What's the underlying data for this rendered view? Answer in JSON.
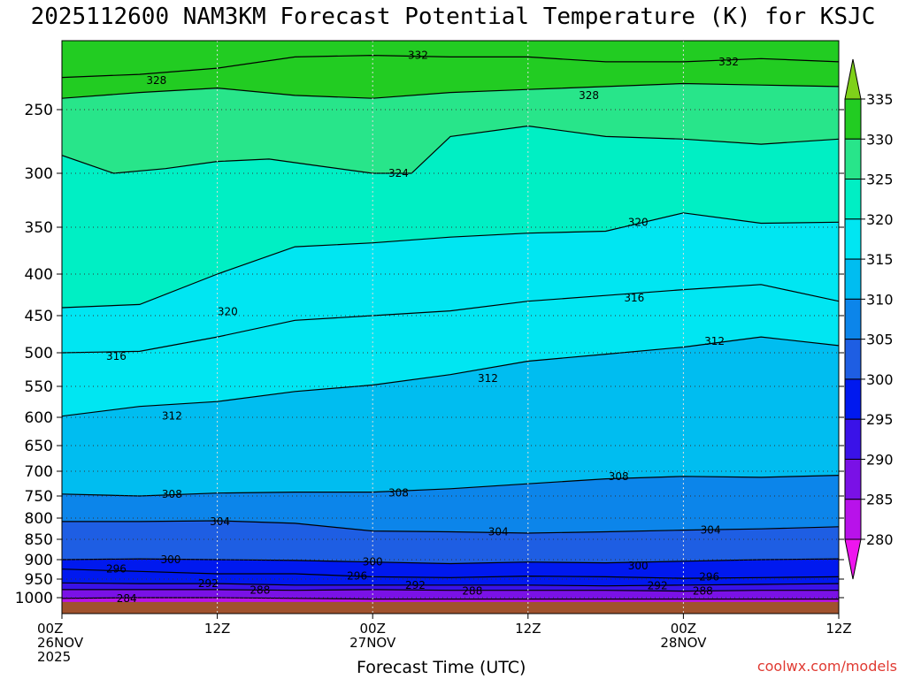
{
  "title": "2025112600 NAM3KM Forecast Potential Temperature (K) for KSJC",
  "credit": "coolwx.com/models",
  "chart_data": {
    "type": "contour",
    "variable": "Potential Temperature (K)",
    "xlabel": "Forecast Time (UTC)",
    "ylabel": "",
    "x_ticks": [
      {
        "hour": 0,
        "lines": [
          "00Z",
          "26NOV",
          "2025"
        ]
      },
      {
        "hour": 12,
        "lines": [
          "12Z"
        ]
      },
      {
        "hour": 24,
        "lines": [
          "00Z",
          "27NOV"
        ]
      },
      {
        "hour": 36,
        "lines": [
          "12Z"
        ]
      },
      {
        "hour": 48,
        "lines": [
          "00Z",
          "28NOV"
        ]
      },
      {
        "hour": 60,
        "lines": [
          "12Z"
        ]
      }
    ],
    "xlim": [
      0,
      60
    ],
    "y_ticks": [
      250,
      300,
      350,
      400,
      450,
      500,
      550,
      600,
      650,
      700,
      750,
      800,
      850,
      900,
      950,
      1000
    ],
    "ylim_hpa": [
      200,
      1030
    ],
    "colorbar": {
      "ticks": [
        335,
        330,
        325,
        320,
        315,
        310,
        305,
        300,
        295,
        290,
        285,
        280
      ],
      "bands": [
        {
          "lo": 335,
          "hi": 340,
          "color": "#7fd11a"
        },
        {
          "lo": 330,
          "hi": 335,
          "color": "#22cc22"
        },
        {
          "lo": 325,
          "hi": 330,
          "color": "#28e58a"
        },
        {
          "lo": 320,
          "hi": 325,
          "color": "#00efc4"
        },
        {
          "lo": 315,
          "hi": 320,
          "color": "#00e6f2"
        },
        {
          "lo": 310,
          "hi": 315,
          "color": "#00bdf0"
        },
        {
          "lo": 305,
          "hi": 310,
          "color": "#0c85ea"
        },
        {
          "lo": 300,
          "hi": 305,
          "color": "#1e5ee3"
        },
        {
          "lo": 295,
          "hi": 300,
          "color": "#0019ef"
        },
        {
          "lo": 290,
          "hi": 295,
          "color": "#3a12e8"
        },
        {
          "lo": 285,
          "hi": 290,
          "color": "#7a11e6"
        },
        {
          "lo": 280,
          "hi": 285,
          "color": "#b812ea"
        },
        {
          "lo": 275,
          "hi": 280,
          "color": "#ee16ee"
        }
      ]
    },
    "contour_levels_drawn": [
      284,
      288,
      292,
      296,
      300,
      304,
      308,
      312,
      316,
      320,
      324,
      328,
      332
    ],
    "contours": [
      {
        "level": 332,
        "labeled": true,
        "points": [
          [
            0,
            228
          ],
          [
            6,
            226
          ],
          [
            12,
            222
          ],
          [
            18,
            215
          ],
          [
            24,
            214
          ],
          [
            30,
            215
          ],
          [
            36,
            215
          ],
          [
            42,
            218
          ],
          [
            48,
            218
          ],
          [
            54,
            216
          ],
          [
            60,
            218
          ]
        ]
      },
      {
        "level": 328,
        "labeled": true,
        "points": [
          [
            0,
            242
          ],
          [
            6,
            238
          ],
          [
            12,
            235
          ],
          [
            18,
            240
          ],
          [
            24,
            242
          ],
          [
            30,
            238
          ],
          [
            36,
            236
          ],
          [
            42,
            234
          ],
          [
            48,
            232
          ],
          [
            54,
            233
          ],
          [
            60,
            234
          ]
        ]
      },
      {
        "level": 324,
        "labeled": true,
        "points": [
          [
            0,
            285
          ],
          [
            4,
            300
          ],
          [
            8,
            296
          ],
          [
            12,
            290
          ],
          [
            16,
            288
          ],
          [
            20,
            294
          ],
          [
            24,
            300
          ],
          [
            27,
            300
          ],
          [
            30,
            270
          ],
          [
            36,
            262
          ],
          [
            42,
            270
          ],
          [
            48,
            272
          ],
          [
            54,
            276
          ],
          [
            60,
            272
          ]
        ]
      },
      {
        "level": 320,
        "labeled": true,
        "points": [
          [
            0,
            440
          ],
          [
            6,
            436
          ],
          [
            12,
            400
          ],
          [
            18,
            370
          ],
          [
            24,
            366
          ],
          [
            30,
            360
          ],
          [
            36,
            356
          ],
          [
            42,
            354
          ],
          [
            48,
            336
          ],
          [
            54,
            346
          ],
          [
            60,
            345
          ]
        ]
      },
      {
        "level": 316,
        "labeled": true,
        "points": [
          [
            0,
            500
          ],
          [
            6,
            498
          ],
          [
            12,
            478
          ],
          [
            18,
            456
          ],
          [
            24,
            450
          ],
          [
            30,
            444
          ],
          [
            36,
            432
          ],
          [
            42,
            425
          ],
          [
            48,
            418
          ],
          [
            54,
            412
          ],
          [
            60,
            432
          ]
        ]
      },
      {
        "level": 312,
        "labeled": true,
        "points": [
          [
            0,
            598
          ],
          [
            6,
            582
          ],
          [
            12,
            574
          ],
          [
            18,
            558
          ],
          [
            24,
            548
          ],
          [
            30,
            532
          ],
          [
            36,
            512
          ],
          [
            42,
            502
          ],
          [
            48,
            492
          ],
          [
            54,
            478
          ],
          [
            60,
            490
          ]
        ]
      },
      {
        "level": 308,
        "labeled": true,
        "points": [
          [
            0,
            746
          ],
          [
            6,
            750
          ],
          [
            12,
            744
          ],
          [
            18,
            742
          ],
          [
            24,
            742
          ],
          [
            30,
            735
          ],
          [
            36,
            725
          ],
          [
            42,
            715
          ],
          [
            48,
            710
          ],
          [
            54,
            712
          ],
          [
            60,
            708
          ]
        ]
      },
      {
        "level": 304,
        "labeled": true,
        "points": [
          [
            0,
            808
          ],
          [
            6,
            808
          ],
          [
            12,
            806
          ],
          [
            18,
            812
          ],
          [
            24,
            830
          ],
          [
            30,
            832
          ],
          [
            36,
            835
          ],
          [
            42,
            832
          ],
          [
            48,
            828
          ],
          [
            54,
            825
          ],
          [
            60,
            820
          ]
        ]
      },
      {
        "level": 300,
        "labeled": true,
        "points": [
          [
            0,
            900
          ],
          [
            6,
            898
          ],
          [
            12,
            900
          ],
          [
            18,
            902
          ],
          [
            24,
            906
          ],
          [
            30,
            910
          ],
          [
            36,
            906
          ],
          [
            42,
            908
          ],
          [
            48,
            904
          ],
          [
            54,
            900
          ],
          [
            60,
            898
          ]
        ]
      },
      {
        "level": 296,
        "labeled": true,
        "points": [
          [
            0,
            924
          ],
          [
            6,
            930
          ],
          [
            12,
            936
          ],
          [
            18,
            936
          ],
          [
            24,
            944
          ],
          [
            30,
            946
          ],
          [
            36,
            942
          ],
          [
            42,
            944
          ],
          [
            48,
            948
          ],
          [
            54,
            946
          ],
          [
            60,
            944
          ]
        ]
      },
      {
        "level": 292,
        "labeled": true,
        "points": [
          [
            0,
            960
          ],
          [
            6,
            962
          ],
          [
            12,
            962
          ],
          [
            18,
            966
          ],
          [
            24,
            966
          ],
          [
            30,
            966
          ],
          [
            36,
            966
          ],
          [
            42,
            968
          ],
          [
            48,
            966
          ],
          [
            54,
            964
          ],
          [
            60,
            962
          ]
        ]
      },
      {
        "level": 288,
        "labeled": true,
        "points": [
          [
            0,
            978
          ],
          [
            6,
            978
          ],
          [
            12,
            978
          ],
          [
            18,
            980
          ],
          [
            24,
            978
          ],
          [
            30,
            980
          ],
          [
            36,
            980
          ],
          [
            42,
            980
          ],
          [
            48,
            982
          ],
          [
            54,
            980
          ],
          [
            60,
            980
          ]
        ]
      },
      {
        "level": 284,
        "labeled": true,
        "points": [
          [
            0,
            1002
          ],
          [
            6,
            1000
          ],
          [
            12,
            1000
          ],
          [
            18,
            1002
          ],
          [
            24,
            1004
          ],
          [
            30,
            1004
          ],
          [
            36,
            1004
          ],
          [
            42,
            1004
          ],
          [
            48,
            1004
          ],
          [
            54,
            1004
          ],
          [
            60,
            1004
          ]
        ]
      }
    ],
    "contour_labels": [
      {
        "text": "332",
        "hour": 27.5,
        "hpa": 214
      },
      {
        "text": "332",
        "hour": 51.5,
        "hpa": 218
      },
      {
        "text": "328",
        "hour": 7.3,
        "hpa": 230
      },
      {
        "text": "328",
        "hour": 40.7,
        "hpa": 240
      },
      {
        "text": "324",
        "hour": 26.0,
        "hpa": 300
      },
      {
        "text": "320",
        "hour": 44.5,
        "hpa": 345
      },
      {
        "text": "320",
        "hour": 12.8,
        "hpa": 445
      },
      {
        "text": "316",
        "hour": 44.2,
        "hpa": 428
      },
      {
        "text": "316",
        "hour": 4.2,
        "hpa": 505
      },
      {
        "text": "312",
        "hour": 50.4,
        "hpa": 484
      },
      {
        "text": "312",
        "hour": 32.9,
        "hpa": 538
      },
      {
        "text": "312",
        "hour": 8.5,
        "hpa": 598
      },
      {
        "text": "308",
        "hour": 8.5,
        "hpa": 746
      },
      {
        "text": "308",
        "hour": 26.0,
        "hpa": 744
      },
      {
        "text": "308",
        "hour": 43.0,
        "hpa": 710
      },
      {
        "text": "304",
        "hour": 12.2,
        "hpa": 808
      },
      {
        "text": "304",
        "hour": 33.7,
        "hpa": 832
      },
      {
        "text": "304",
        "hour": 50.1,
        "hpa": 828
      },
      {
        "text": "300",
        "hour": 8.4,
        "hpa": 900
      },
      {
        "text": "300",
        "hour": 24.0,
        "hpa": 905
      },
      {
        "text": "300",
        "hour": 44.5,
        "hpa": 916
      },
      {
        "text": "296",
        "hour": 4.2,
        "hpa": 924
      },
      {
        "text": "296",
        "hour": 22.8,
        "hpa": 942
      },
      {
        "text": "296",
        "hour": 50.0,
        "hpa": 944
      },
      {
        "text": "292",
        "hour": 11.3,
        "hpa": 962
      },
      {
        "text": "292",
        "hour": 27.3,
        "hpa": 966
      },
      {
        "text": "292",
        "hour": 46.0,
        "hpa": 968
      },
      {
        "text": "288",
        "hour": 15.3,
        "hpa": 980
      },
      {
        "text": "288",
        "hour": 31.7,
        "hpa": 982
      },
      {
        "text": "288",
        "hour": 49.5,
        "hpa": 982
      },
      {
        "text": "284",
        "hour": 5.0,
        "hpa": 1003
      }
    ],
    "ground_color": "#a0522d"
  }
}
